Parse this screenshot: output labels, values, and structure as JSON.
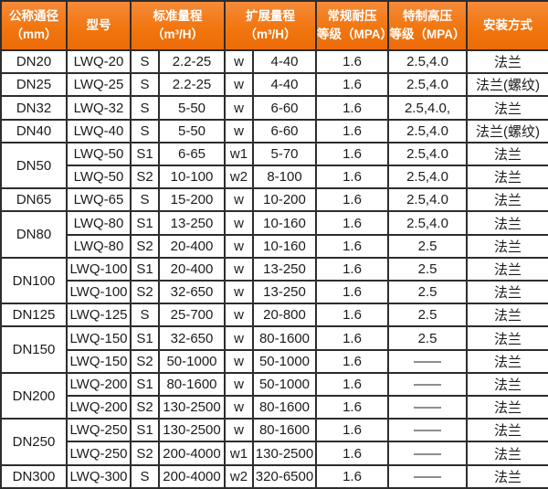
{
  "table": {
    "headers": [
      {
        "label": "公称通径\n（mm）"
      },
      {
        "label": "型号"
      },
      {
        "label": "标准量程\n（m³/H）"
      },
      {
        "label": "扩展量程\n（m³/H）"
      },
      {
        "label": "常规耐压\n等级（MPA）"
      },
      {
        "label": "特制高压\n等级（MPA）"
      },
      {
        "label": "安装方式"
      }
    ],
    "accent_color": "#f1760f",
    "border_color": "#2d2d2d",
    "rows": [
      {
        "dn": "DN20",
        "dn_span": 1,
        "model": "LWQ-20",
        "std_code": "S",
        "std_range": "2.2-25",
        "ext_code": "w",
        "ext_range": "4-40",
        "pn": "1.6",
        "hp": "2.5,4.0",
        "install": "法兰"
      },
      {
        "dn": "DN25",
        "dn_span": 1,
        "model": "LWQ-25",
        "std_code": "S",
        "std_range": "2.2-25",
        "ext_code": "w",
        "ext_range": "4-40",
        "pn": "1.6",
        "hp": "2.5,4.0",
        "install": "法兰(螺纹)"
      },
      {
        "dn": "DN32",
        "dn_span": 1,
        "model": "LWQ-32",
        "std_code": "S",
        "std_range": "5-50",
        "ext_code": "w",
        "ext_range": "6-60",
        "pn": "1.6",
        "hp": "2.5,4.0,",
        "install": "法兰"
      },
      {
        "dn": "DN40",
        "dn_span": 1,
        "model": "LWQ-40",
        "std_code": "S",
        "std_range": "5-50",
        "ext_code": "w",
        "ext_range": "6-60",
        "pn": "1.6",
        "hp": "2.5,4.0",
        "install": "法兰(螺纹)"
      },
      {
        "dn": "DN50",
        "dn_span": 2,
        "model": "LWQ-50",
        "std_code": "S1",
        "std_range": "6-65",
        "ext_code": "w1",
        "ext_range": "5-70",
        "pn": "1.6",
        "hp": "2.5,4.0",
        "install": "法兰"
      },
      {
        "model": "LWQ-50",
        "std_code": "S2",
        "std_range": "10-100",
        "ext_code": "w2",
        "ext_range": "8-100",
        "pn": "1.6",
        "hp": "2.5,4.0",
        "install": "法兰"
      },
      {
        "dn": "DN65",
        "dn_span": 1,
        "model": "LWQ-65",
        "std_code": "S",
        "std_range": "15-200",
        "ext_code": "w",
        "ext_range": "10-200",
        "pn": "1.6",
        "hp": "2.5,4.0",
        "install": "法兰"
      },
      {
        "dn": "DN80",
        "dn_span": 2,
        "model": "LWQ-80",
        "std_code": "S1",
        "std_range": "13-250",
        "ext_code": "w",
        "ext_range": "10-160",
        "pn": "1.6",
        "hp": "2.5,4.0",
        "install": "法兰"
      },
      {
        "model": "LWQ-80",
        "std_code": "S2",
        "std_range": "20-400",
        "ext_code": "w",
        "ext_range": "10-160",
        "pn": "1.6",
        "hp": "2.5",
        "install": "法兰"
      },
      {
        "dn": "DN100",
        "dn_span": 2,
        "model": "LWQ-100",
        "std_code": "S1",
        "std_range": "20-400",
        "ext_code": "w",
        "ext_range": "13-250",
        "pn": "1.6",
        "hp": "2.5",
        "install": "法兰"
      },
      {
        "model": "LWQ-100",
        "std_code": "S2",
        "std_range": "32-650",
        "ext_code": "w",
        "ext_range": "13-250",
        "pn": "1.6",
        "hp": "2.5",
        "install": "法兰"
      },
      {
        "dn": "DN125",
        "dn_span": 1,
        "model": "LWQ-125",
        "std_code": "S",
        "std_range": "25-700",
        "ext_code": "w",
        "ext_range": "20-800",
        "pn": "1.6",
        "hp": "2.5",
        "install": "法兰"
      },
      {
        "dn": "DN150",
        "dn_span": 2,
        "model": "LWQ-150",
        "std_code": "S1",
        "std_range": "32-650",
        "ext_code": "w",
        "ext_range": "80-1600",
        "pn": "1.6",
        "hp": "2.5",
        "install": "法兰"
      },
      {
        "model": "LWQ-150",
        "std_code": "S2",
        "std_range": "50-1000",
        "ext_code": "w",
        "ext_range": "50-1000",
        "pn": "1.6",
        "hp": "——",
        "install": "法兰"
      },
      {
        "dn": "DN200",
        "dn_span": 2,
        "model": "LWQ-200",
        "std_code": "S1",
        "std_range": "80-1600",
        "ext_code": "w",
        "ext_range": "50-1000",
        "pn": "1.6",
        "hp": "——",
        "install": "法兰"
      },
      {
        "model": "LWQ-200",
        "std_code": "S2",
        "std_range": "130-2500",
        "ext_code": "w",
        "ext_range": "80-1600",
        "pn": "1.6",
        "hp": "——",
        "install": "法兰"
      },
      {
        "dn": "DN250",
        "dn_span": 2,
        "model": "LWQ-250",
        "std_code": "S1",
        "std_range": "130-2500",
        "ext_code": "w",
        "ext_range": "80-1600",
        "pn": "1.6",
        "hp": "——",
        "install": "法兰"
      },
      {
        "model": "LWQ-250",
        "std_code": "S2",
        "std_range": "200-4000",
        "ext_code": "w1",
        "ext_range": "130-2500",
        "pn": "1.6",
        "hp": "——",
        "install": "法兰"
      },
      {
        "dn": "DN300",
        "dn_span": 1,
        "model": "LWQ-300",
        "std_code": "S",
        "std_range": "200-4000",
        "ext_code": "w2",
        "ext_range": "320-6500",
        "pn": "1.6",
        "hp": "——",
        "install": "法兰"
      }
    ]
  }
}
